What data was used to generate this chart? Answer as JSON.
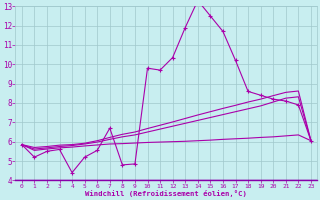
{
  "xlabel": "Windchill (Refroidissement éolien,°C)",
  "bg_color": "#c8eef0",
  "grid_color": "#a0c8cc",
  "line_color": "#aa00aa",
  "spine_color": "#8800aa",
  "xlim": [
    -0.5,
    23.5
  ],
  "ylim": [
    4,
    13
  ],
  "xticks": [
    0,
    1,
    2,
    3,
    4,
    5,
    6,
    7,
    8,
    9,
    10,
    11,
    12,
    13,
    14,
    15,
    16,
    17,
    18,
    19,
    20,
    21,
    22,
    23
  ],
  "yticks": [
    4,
    5,
    6,
    7,
    8,
    9,
    10,
    11,
    12,
    13
  ],
  "main_line": {
    "x": [
      0,
      1,
      2,
      3,
      4,
      5,
      6,
      7,
      8,
      9,
      10,
      11,
      12,
      13,
      14,
      15,
      16,
      17,
      18,
      19,
      20,
      21,
      22,
      23
    ],
    "y": [
      5.85,
      5.2,
      5.5,
      5.6,
      4.4,
      5.2,
      5.55,
      6.7,
      4.8,
      4.85,
      9.8,
      9.7,
      10.35,
      11.9,
      13.3,
      12.5,
      11.7,
      10.2,
      8.6,
      8.4,
      8.2,
      8.1,
      7.9,
      6.05
    ]
  },
  "line_upper": {
    "x": [
      0,
      1,
      2,
      3,
      4,
      5,
      6,
      7,
      8,
      9,
      10,
      11,
      12,
      13,
      14,
      15,
      16,
      17,
      18,
      19,
      20,
      21,
      22,
      23
    ],
    "y": [
      5.85,
      5.7,
      5.75,
      5.82,
      5.85,
      5.92,
      6.05,
      6.22,
      6.38,
      6.5,
      6.68,
      6.85,
      7.02,
      7.2,
      7.38,
      7.55,
      7.72,
      7.88,
      8.05,
      8.2,
      8.38,
      8.55,
      8.62,
      6.05
    ]
  },
  "line_mid": {
    "x": [
      0,
      1,
      2,
      3,
      4,
      5,
      6,
      7,
      8,
      9,
      10,
      11,
      12,
      13,
      14,
      15,
      16,
      17,
      18,
      19,
      20,
      21,
      22,
      23
    ],
    "y": [
      5.85,
      5.62,
      5.68,
      5.75,
      5.8,
      5.88,
      5.98,
      6.12,
      6.25,
      6.35,
      6.5,
      6.65,
      6.8,
      6.95,
      7.1,
      7.25,
      7.4,
      7.55,
      7.7,
      7.85,
      8.05,
      8.25,
      8.32,
      6.05
    ]
  },
  "line_lower": {
    "x": [
      0,
      1,
      2,
      3,
      4,
      5,
      6,
      7,
      8,
      9,
      10,
      11,
      12,
      13,
      14,
      15,
      16,
      17,
      18,
      19,
      20,
      21,
      22,
      23
    ],
    "y": [
      5.85,
      5.55,
      5.62,
      5.68,
      5.72,
      5.78,
      5.83,
      5.88,
      5.9,
      5.93,
      5.96,
      5.98,
      6.0,
      6.02,
      6.05,
      6.08,
      6.12,
      6.15,
      6.18,
      6.22,
      6.25,
      6.3,
      6.35,
      6.05
    ]
  }
}
